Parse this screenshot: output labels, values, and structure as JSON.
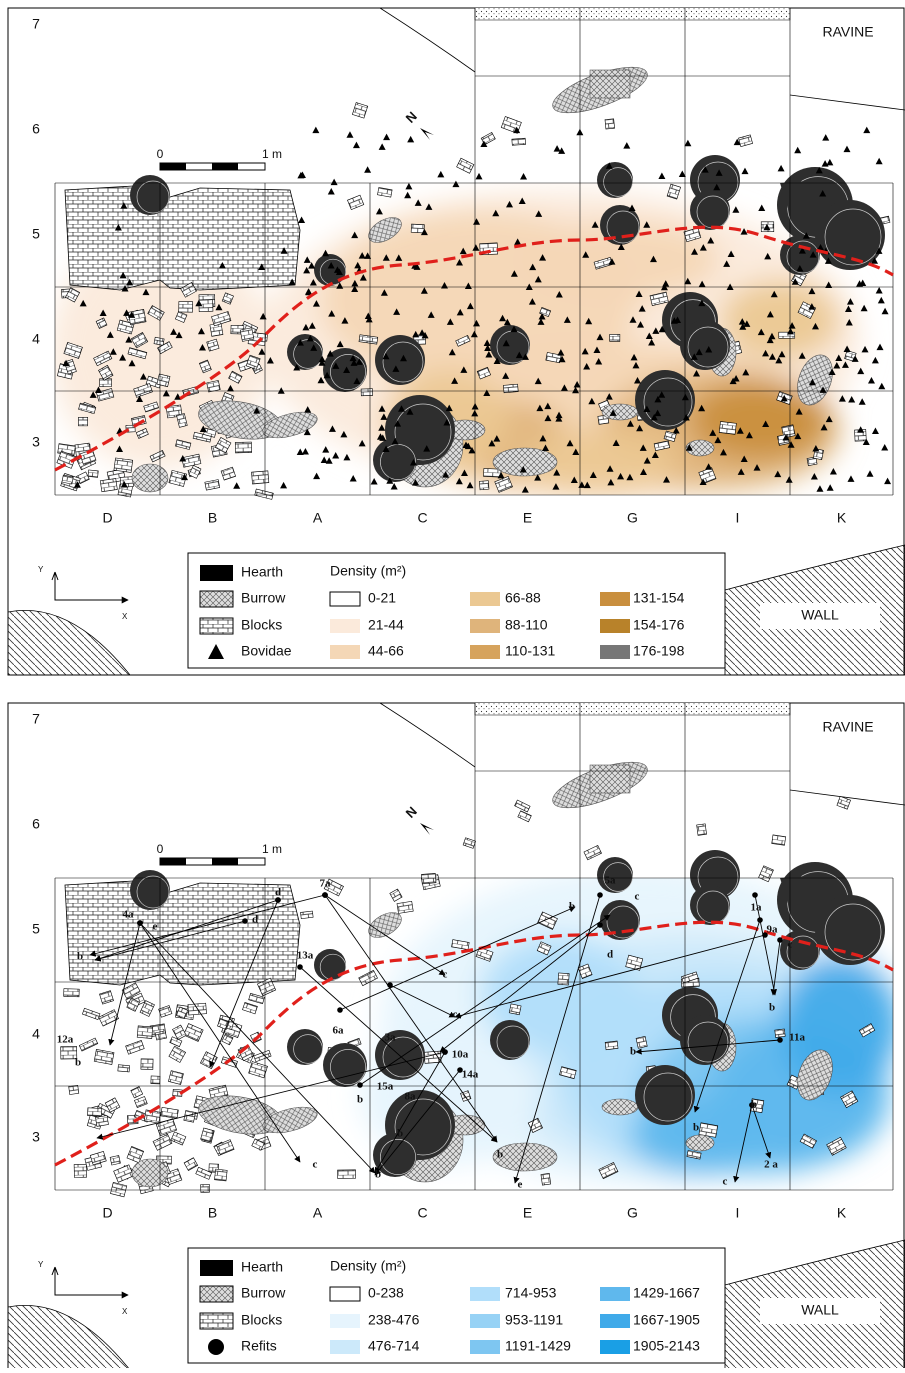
{
  "panels": [
    {
      "row_labels": [
        "7",
        "6",
        "5",
        "4",
        "3"
      ],
      "column_labels": [
        "D",
        "B",
        "A",
        "C",
        "E",
        "G",
        "I",
        "K"
      ],
      "ravine": "RAVINE",
      "wall": "WALL",
      "scale": {
        "start": "0",
        "end": "1 m"
      },
      "axes": {
        "y": "Y",
        "x": "X"
      },
      "legend": {
        "items": [
          "Hearth",
          "Burrow",
          "Blocks",
          "Bovidae"
        ],
        "density_title": "Density (m²)",
        "density_classes": [
          {
            "label": "0-21",
            "color": "#ffffff"
          },
          {
            "label": "21-44",
            "color": "#fbeadb"
          },
          {
            "label": "44-66",
            "color": "#f4d7b6"
          },
          {
            "label": "66-88",
            "color": "#ebc892"
          },
          {
            "label": "88-110",
            "color": "#dfb47b"
          },
          {
            "label": "110-131",
            "color": "#d6a35d"
          },
          {
            "label": "131-154",
            "color": "#c98f3e"
          },
          {
            "label": "154-176",
            "color": "#b8822a"
          },
          {
            "label": "176-198",
            "color": "#777777"
          }
        ]
      }
    },
    {
      "row_labels": [
        "7",
        "6",
        "5",
        "4",
        "3"
      ],
      "column_labels": [
        "D",
        "B",
        "A",
        "C",
        "E",
        "G",
        "I",
        "K"
      ],
      "ravine": "RAVINE",
      "wall": "WALL",
      "scale": {
        "start": "0",
        "end": "1 m"
      },
      "axes": {
        "y": "Y",
        "x": "X"
      },
      "legend": {
        "items": [
          "Hearth",
          "Burrow",
          "Blocks",
          "Refits"
        ],
        "density_title": "Density (m²)",
        "density_classes": [
          {
            "label": "0-238",
            "color": "#ffffff"
          },
          {
            "label": "238-476",
            "color": "#e6f4fd"
          },
          {
            "label": "476-714",
            "color": "#cce9fa"
          },
          {
            "label": "714-953",
            "color": "#b1defa"
          },
          {
            "label": "953-1191",
            "color": "#97d2f5"
          },
          {
            "label": "1191-1429",
            "color": "#7ec6f1"
          },
          {
            "label": "1429-1667",
            "color": "#5fb8ed"
          },
          {
            "label": "1667-1905",
            "color": "#40aae9"
          },
          {
            "label": "1905-2143",
            "color": "#1a9fe5"
          }
        ]
      },
      "refit_labels": [
        "7a",
        "d",
        "d",
        "4a",
        "e",
        "b",
        "13a",
        "6a",
        "3a",
        "12a",
        "b",
        "c",
        "c",
        "10a",
        "14a",
        "15a",
        "8a",
        "b",
        "b",
        "b",
        "b",
        "e",
        "5a",
        "c",
        "b",
        "d",
        "1a",
        "9a",
        "c",
        "b",
        "11a",
        "b",
        "b",
        "b",
        "2 a",
        "c",
        "c"
      ]
    }
  ]
}
